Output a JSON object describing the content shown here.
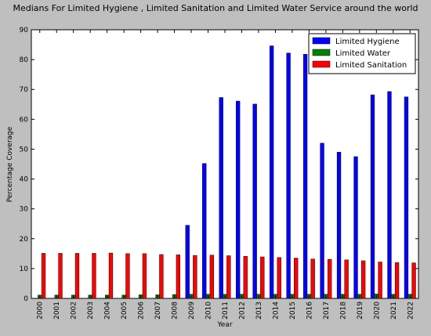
{
  "chart_data": {
    "type": "bar",
    "title": "Medians For Limited Hygiene , Limited Sanitation and Limited Water Service around the world",
    "xlabel": "Year",
    "ylabel": "Percentage Coverage",
    "ylim": [
      0,
      90
    ],
    "yticks": [
      0,
      10,
      20,
      30,
      40,
      50,
      60,
      70,
      80,
      90
    ],
    "grid": false,
    "legend_position": "top-right",
    "categories": [
      "2000",
      "2001",
      "2002",
      "2003",
      "2004",
      "2005",
      "2006",
      "2007",
      "2008",
      "2009",
      "2010",
      "2011",
      "2012",
      "2013",
      "2014",
      "2015",
      "2016",
      "2017",
      "2018",
      "2019",
      "2020",
      "2021",
      "2022"
    ],
    "series": [
      {
        "name": "Limited Hygiene",
        "color": "#0000ff",
        "values": [
          0,
          0,
          0,
          0,
          0,
          0,
          0,
          0,
          0,
          24.5,
          45.2,
          67.3,
          66.1,
          65.1,
          84.6,
          82.2,
          81.8,
          52.0,
          49.0,
          47.5,
          68.2,
          69.3,
          67.5
        ]
      },
      {
        "name": "Limited Water",
        "color": "#008000",
        "values": [
          1.1,
          1.1,
          1.1,
          1.1,
          1.1,
          1.1,
          1.2,
          1.2,
          1.3,
          1.4,
          1.4,
          1.4,
          1.4,
          1.4,
          1.4,
          1.4,
          1.4,
          1.4,
          1.4,
          1.4,
          1.5,
          1.4,
          1.4
        ]
      },
      {
        "name": "Limited Sanitation",
        "color": "#ff0000",
        "values": [
          15.1,
          15.1,
          15.1,
          15.1,
          15.2,
          15.0,
          15.0,
          14.7,
          14.6,
          14.4,
          14.5,
          14.3,
          14.1,
          13.9,
          13.7,
          13.5,
          13.2,
          13.1,
          12.9,
          12.6,
          12.2,
          12.0,
          11.9
        ]
      }
    ]
  }
}
